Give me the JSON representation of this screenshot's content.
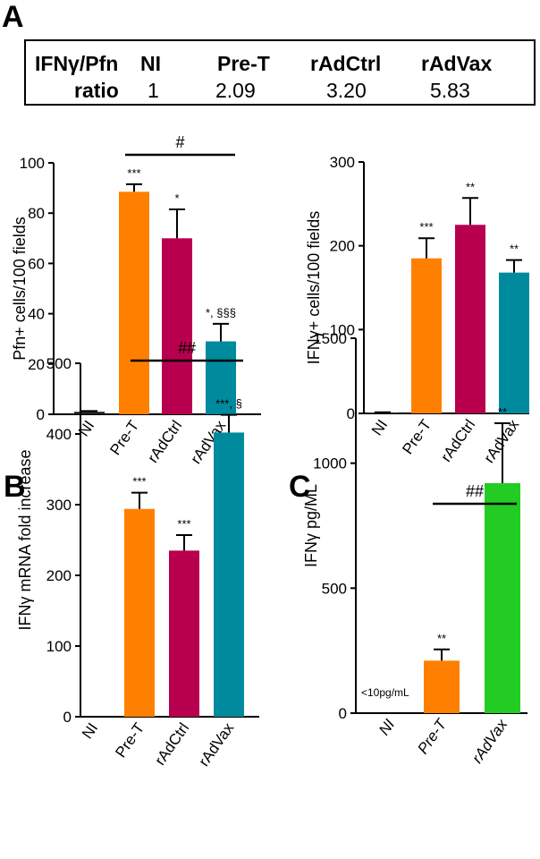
{
  "panel_labels": {
    "a": "A",
    "b": "B",
    "c": "C"
  },
  "ratio_table": {
    "row1_label": "IFNγ/Pfn",
    "row2_label": "ratio",
    "columns": [
      {
        "group": "NI",
        "ratio": "1"
      },
      {
        "group": "Pre-T",
        "ratio": "2.09"
      },
      {
        "group": "rAdCtrl",
        "ratio": "3.20"
      },
      {
        "group": "rAdVax",
        "ratio": "5.83"
      }
    ]
  },
  "chart_data": [
    {
      "id": "pfn",
      "type": "bar",
      "panel": "A",
      "title": "",
      "xlabel": "",
      "ylabel": "Pfn+ cells/100 fields",
      "categories": [
        "NI",
        "Pre-T",
        "rAdCtrl",
        "rAdVax"
      ],
      "values": [
        1,
        88.5,
        70,
        29
      ],
      "errors": [
        0.3,
        3,
        11.5,
        7
      ],
      "colors": [
        "#222222",
        "#ff8000",
        "#b8004f",
        "#008a9e"
      ],
      "annotations": [
        "",
        "***",
        "*",
        "*, §§§"
      ],
      "ylim": [
        0,
        100
      ],
      "yticks": [
        0,
        20,
        40,
        60,
        80,
        100
      ],
      "bracket": {
        "label": "#",
        "from": "Pre-T",
        "to": "rAdVax"
      },
      "italic_labels": false
    },
    {
      "id": "ifng-cells",
      "type": "bar",
      "panel": "A",
      "title": "",
      "xlabel": "",
      "ylabel": "IFNγ+ cells/100 fields",
      "categories": [
        "NI",
        "Pre-T",
        "rAdCtrl",
        "rAdVax"
      ],
      "values": [
        1,
        185,
        225,
        168
      ],
      "errors": [
        0.3,
        24,
        32,
        15
      ],
      "colors": [
        "#222222",
        "#ff8000",
        "#b8004f",
        "#008a9e"
      ],
      "annotations": [
        "",
        "***",
        "**",
        "**"
      ],
      "ylim": [
        0,
        300
      ],
      "yticks": [
        0,
        100,
        200,
        300
      ],
      "bracket": null,
      "italic_labels": false
    },
    {
      "id": "mrna",
      "type": "bar",
      "panel": "B",
      "title": "",
      "xlabel": "",
      "ylabel": "IFNγ mRNA fold increase",
      "categories": [
        "NI",
        "Pre-T",
        "rAdCtrl",
        "rAdVax"
      ],
      "values": [
        0,
        294,
        235,
        402
      ],
      "errors": [
        0,
        23,
        22,
        25
      ],
      "colors": [
        "#222222",
        "#ff8000",
        "#b8004f",
        "#008a9e"
      ],
      "annotations": [
        "",
        "***",
        "***",
        "***, §"
      ],
      "ylim": [
        0,
        500
      ],
      "yticks": [
        0,
        100,
        200,
        300,
        400,
        500
      ],
      "bracket": {
        "label": "##",
        "from": "Pre-T",
        "to": "rAdVax"
      },
      "italic_labels": false
    },
    {
      "id": "ifng-pg",
      "type": "bar",
      "panel": "C",
      "title": "",
      "xlabel": "",
      "ylabel": "IFNγ pg/ML",
      "categories": [
        "NI",
        "Pre-T",
        "rAdVax"
      ],
      "values": [
        0,
        210,
        920
      ],
      "errors": [
        0,
        45,
        240
      ],
      "colors": [
        "#222222",
        "#ff8000",
        "#22cc22"
      ],
      "annotations": [
        "",
        "**",
        "**"
      ],
      "ylim": [
        0,
        1500
      ],
      "yticks": [
        0,
        500,
        1000,
        1500
      ],
      "bracket": {
        "label": "##",
        "from": "Pre-T",
        "to": "rAdVax"
      },
      "italic_labels": true,
      "note": "<10pg/mL"
    }
  ]
}
